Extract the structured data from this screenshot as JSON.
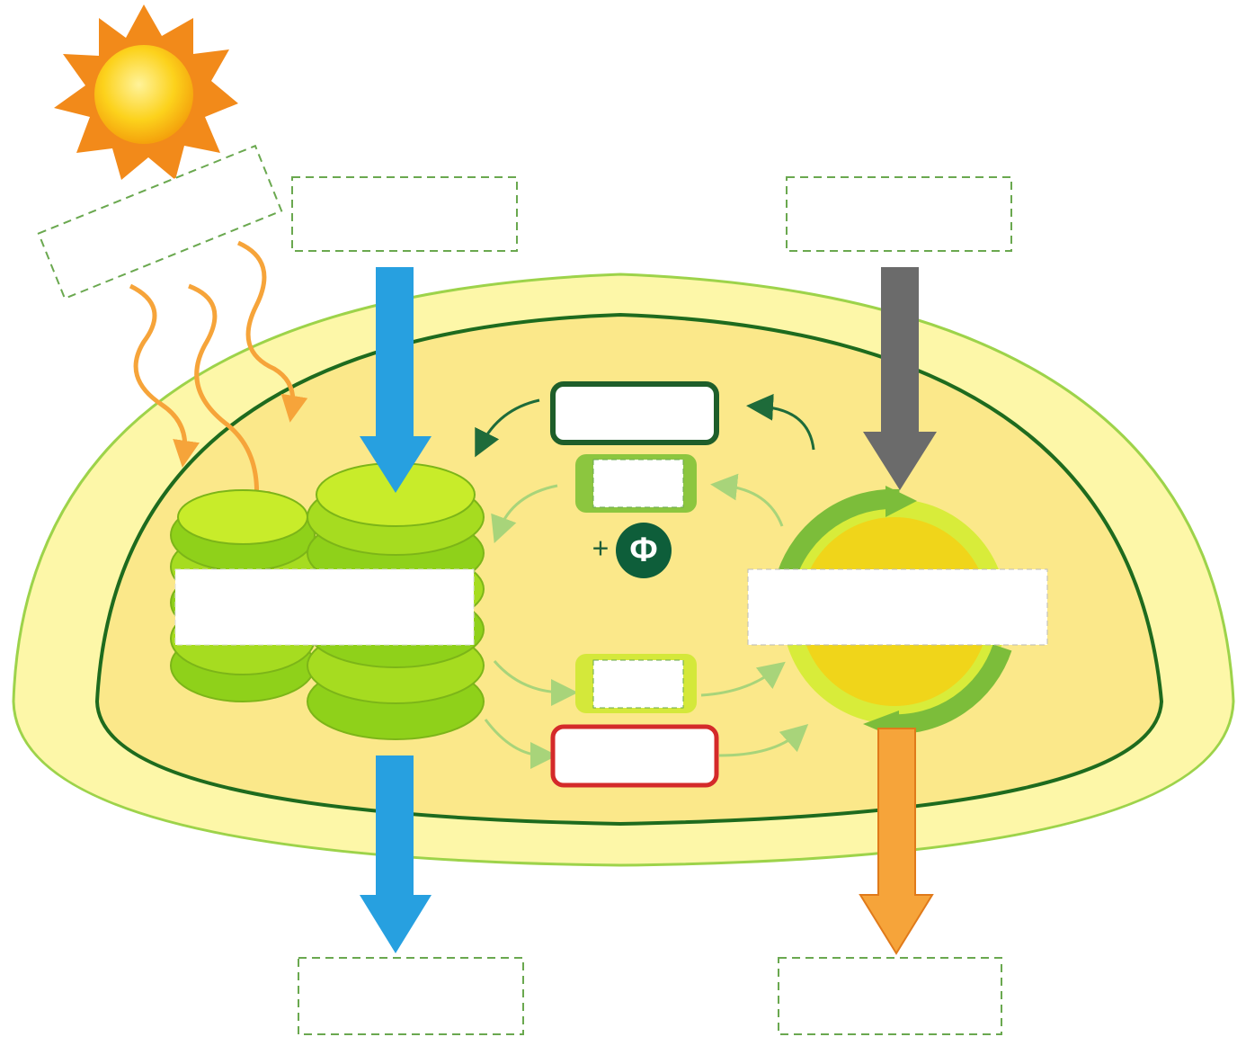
{
  "phosphate": {
    "plus": "+",
    "symbol": "Φ"
  }
}
